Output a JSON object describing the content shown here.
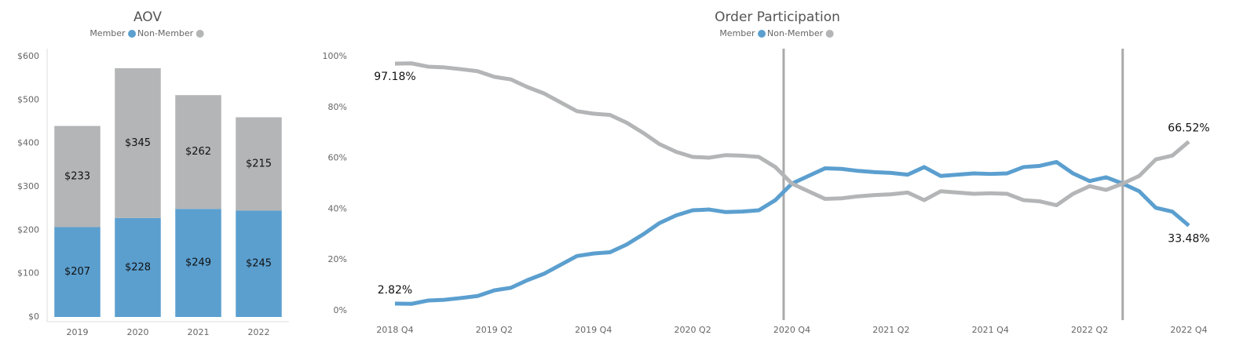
{
  "chart_data": [
    {
      "type": "bar",
      "stacked": true,
      "title": "AOV",
      "categories": [
        "2019",
        "2020",
        "2021",
        "2022"
      ],
      "series": [
        {
          "name": "Member",
          "color": "#5b9fcf",
          "values": [
            207,
            228,
            249,
            245
          ],
          "value_labels": [
            "$207",
            "$228",
            "$249",
            "$245"
          ]
        },
        {
          "name": "Non-Member",
          "color": "#b3b5b6",
          "values": [
            233,
            345,
            262,
            215
          ],
          "value_labels": [
            "$233",
            "$345",
            "$262",
            "$215"
          ]
        }
      ],
      "ylim": [
        0,
        600
      ],
      "yticks": [
        {
          "value": 0,
          "label": "$0"
        },
        {
          "value": 100,
          "label": "$100"
        },
        {
          "value": 200,
          "label": "$200"
        },
        {
          "value": 300,
          "label": "$300"
        },
        {
          "value": 400,
          "label": "$400"
        },
        {
          "value": 500,
          "label": "$500"
        },
        {
          "value": 600,
          "label": "$600"
        }
      ]
    },
    {
      "type": "line",
      "title": "Order Participation",
      "categories": [
        "2018 Q4",
        null,
        null,
        null,
        null,
        null,
        "2019 Q2",
        null,
        null,
        null,
        null,
        null,
        "2019 Q4",
        null,
        null,
        null,
        null,
        null,
        "2020 Q2",
        null,
        null,
        null,
        null,
        null,
        "2020 Q4",
        null,
        null,
        null,
        null,
        null,
        "2021 Q2",
        null,
        null,
        null,
        null,
        null,
        "2021 Q4",
        null,
        null,
        null,
        null,
        null,
        "2022 Q2",
        null,
        null,
        null,
        null,
        null,
        "2022 Q4"
      ],
      "series": [
        {
          "name": "Member",
          "color": "#5b9fcf",
          "values": [
            2.82,
            2.7,
            4,
            4.3,
            5,
            5.8,
            8,
            9,
            12,
            14.5,
            18,
            21.5,
            22.5,
            23,
            26,
            30,
            34.5,
            37.5,
            39.5,
            39.8,
            38.8,
            39,
            39.5,
            43.5,
            50,
            53,
            56,
            55.8,
            55,
            54.5,
            54.2,
            53.5,
            56.5,
            53,
            53.5,
            54,
            53.8,
            54,
            56.5,
            57,
            58.5,
            54,
            51,
            52.5,
            50,
            47,
            40.5,
            39,
            33.48
          ],
          "value_labels": [
            "2.82%",
            null,
            null,
            null,
            null,
            null,
            null,
            null,
            null,
            null,
            null,
            null,
            null,
            null,
            null,
            null,
            null,
            null,
            null,
            null,
            null,
            null,
            null,
            null,
            null,
            null,
            null,
            null,
            null,
            null,
            null,
            null,
            null,
            null,
            null,
            null,
            null,
            null,
            null,
            null,
            null,
            null,
            null,
            null,
            null,
            null,
            null,
            null,
            "33.48%"
          ]
        },
        {
          "name": "Non-Member",
          "color": "#b3b5b6",
          "values": [
            97.18,
            97.3,
            96,
            95.7,
            95,
            94.2,
            92,
            91,
            88,
            85.5,
            82,
            78.5,
            77.5,
            77,
            74,
            70,
            65.5,
            62.5,
            60.5,
            60.2,
            61.2,
            61,
            60.5,
            56.5,
            50,
            47,
            44,
            44.2,
            45,
            45.5,
            45.8,
            46.5,
            43.5,
            47,
            46.5,
            46,
            46.2,
            46,
            43.5,
            43,
            41.5,
            46,
            49,
            47.5,
            50,
            53,
            59.5,
            61,
            66.52
          ],
          "value_labels": [
            "97.18%",
            null,
            null,
            null,
            null,
            null,
            null,
            null,
            null,
            null,
            null,
            null,
            null,
            null,
            null,
            null,
            null,
            null,
            null,
            null,
            null,
            null,
            null,
            null,
            null,
            null,
            null,
            null,
            null,
            null,
            null,
            null,
            null,
            null,
            null,
            null,
            null,
            null,
            null,
            null,
            null,
            null,
            null,
            null,
            null,
            null,
            null,
            null,
            "66.52%"
          ]
        }
      ],
      "vlines": [
        23.5,
        44
      ],
      "ylim": [
        0,
        100
      ],
      "yticks": [
        {
          "value": 0,
          "label": "0%"
        },
        {
          "value": 20,
          "label": "20%"
        },
        {
          "value": 40,
          "label": "40%"
        },
        {
          "value": 60,
          "label": "60%"
        },
        {
          "value": 80,
          "label": "80%"
        },
        {
          "value": 100,
          "label": "100%"
        }
      ]
    }
  ]
}
